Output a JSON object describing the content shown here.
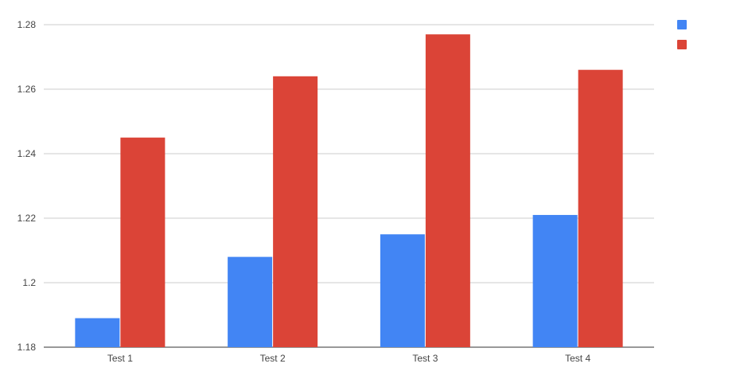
{
  "chart_data": {
    "type": "bar",
    "title": "",
    "xlabel": "",
    "ylabel": "",
    "categories": [
      "Test 1",
      "Test 2",
      "Test 3",
      "Test 4"
    ],
    "series": [
      {
        "values": [
          1.189,
          1.208,
          1.215,
          1.221
        ],
        "color": "#4285f4"
      },
      {
        "values": [
          1.245,
          1.264,
          1.277,
          1.266
        ],
        "color": "#db4437"
      }
    ],
    "ylim": [
      1.18,
      1.28
    ],
    "yticks": [
      "1.18",
      "1.2",
      "1.22",
      "1.24",
      "1.26",
      "1.28"
    ],
    "grid": true,
    "legend": "top-right"
  }
}
